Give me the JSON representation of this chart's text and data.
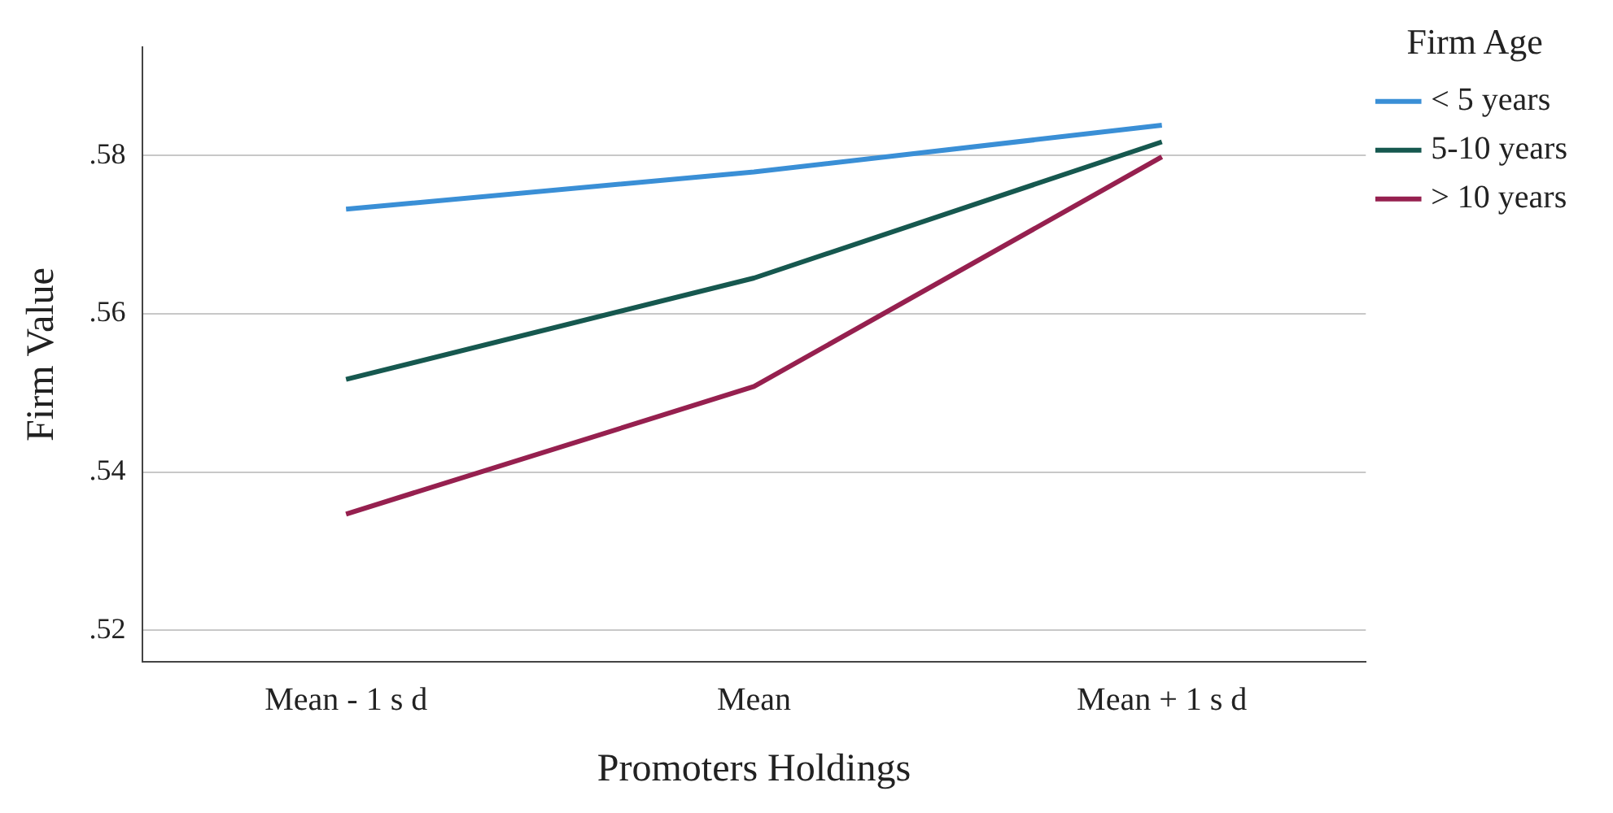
{
  "chart_data": {
    "type": "line",
    "xlabel": "Promoters Holdings",
    "ylabel": "Firm Value",
    "legend_title": "Firm Age",
    "legend": "right",
    "grid": "y",
    "marker": "none",
    "line_style": "solid",
    "categories": [
      "Mean - 1 s d",
      "Mean",
      "Mean + 1 s d"
    ],
    "series": [
      {
        "name": "< 5 years",
        "color": "#3a8fd6",
        "values": [
          0.5732,
          0.5779,
          0.5838
        ]
      },
      {
        "name": "5-10 years",
        "color": "#16584f",
        "values": [
          0.5517,
          0.5645,
          0.5817
        ]
      },
      {
        "name": "> 10 years",
        "color": "#96204f",
        "values": [
          0.5347,
          0.5508,
          0.5798
        ]
      }
    ],
    "ylim": [
      0.516,
      0.5937
    ],
    "yticks": [
      {
        "value": 0.52,
        "label": ".52"
      },
      {
        "value": 0.54,
        "label": ".54"
      },
      {
        "value": 0.56,
        "label": ".56"
      },
      {
        "value": 0.58,
        "label": ".58"
      }
    ]
  }
}
